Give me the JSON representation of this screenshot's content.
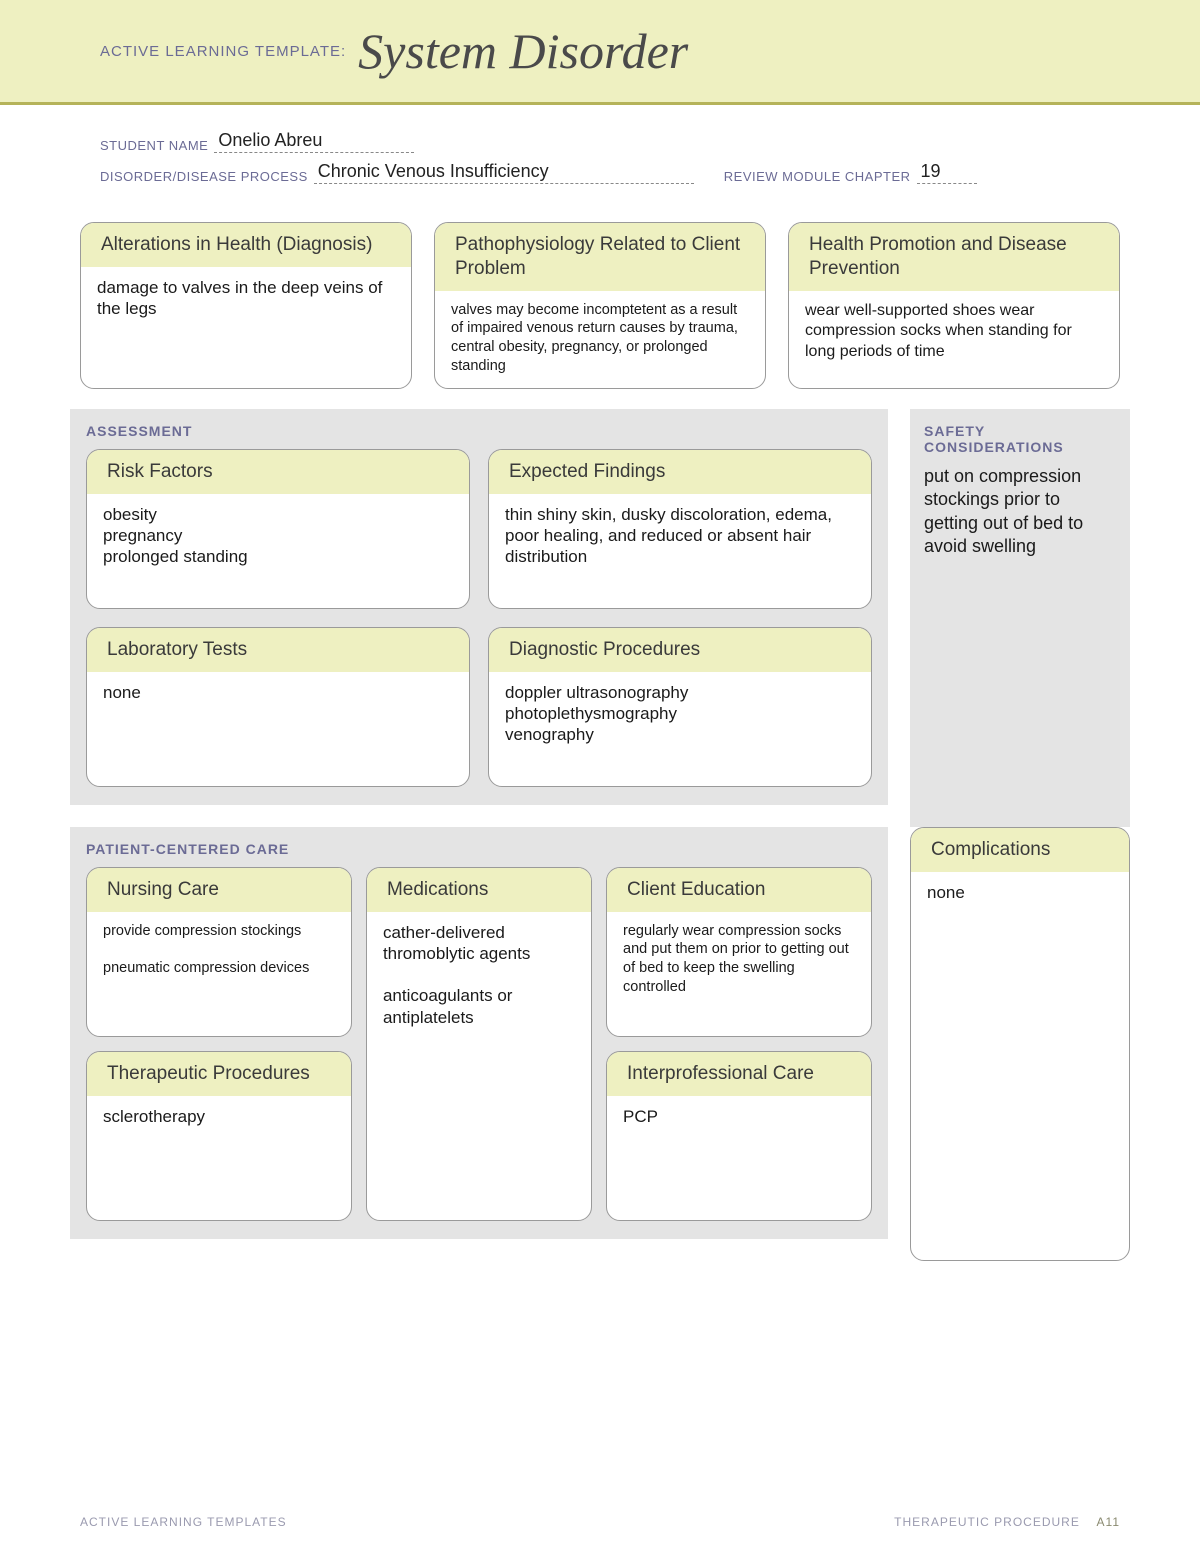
{
  "colors": {
    "banner_bg": "#eef0c1",
    "banner_border": "#b5b35a",
    "section_bg": "#e4e4e4",
    "card_header_bg": "#eef0c1",
    "card_border": "#9a9a9a",
    "label_text": "#6b6b95",
    "body_text": "#1a1a1a",
    "page_bg": "#ffffff"
  },
  "banner": {
    "label": "ACTIVE LEARNING TEMPLATE:",
    "title": "System Disorder"
  },
  "meta": {
    "student_name_label": "STUDENT NAME",
    "student_name": "Onelio Abreu",
    "disorder_label": "DISORDER/DISEASE PROCESS",
    "disorder": "Chronic Venous Insufficiency",
    "chapter_label": "REVIEW MODULE CHAPTER",
    "chapter": "19"
  },
  "top": {
    "alterations": {
      "title": "Alterations in Health (Diagnosis)",
      "body": "damage to valves in the deep veins of the legs"
    },
    "patho": {
      "title": "Pathophysiology Related to Client Problem",
      "body": "valves may become incomptetent as a result of impaired venous return causes by trauma, central obesity, pregnancy, or prolonged standing"
    },
    "promotion": {
      "title": "Health Promotion and Disease Prevention",
      "body": "wear well-supported shoes wear compression socks when standing for long periods of time"
    }
  },
  "assessment": {
    "section_label": "ASSESSMENT",
    "risk": {
      "title": "Risk Factors",
      "body": "obesity\npregnancy\nprolonged standing"
    },
    "findings": {
      "title": "Expected Findings",
      "body": "thin shiny skin, dusky discoloration, edema, poor healing, and reduced or absent hair distribution"
    },
    "labs": {
      "title": "Laboratory Tests",
      "body": "none"
    },
    "diag": {
      "title": "Diagnostic Procedures",
      "body": "doppler ultrasonography\nphotoplethysmography\nvenography"
    }
  },
  "safety": {
    "section_label": "SAFETY CONSIDERATIONS",
    "body": "put on compression stockings prior to getting out of bed to avoid swelling"
  },
  "pcc": {
    "section_label": "PATIENT-CENTERED CARE",
    "nursing": {
      "title": "Nursing Care",
      "body": "provide compression stockings\n\npneumatic compression devices"
    },
    "meds": {
      "title": "Medications",
      "body": "cather-delivered thromoblytic agents\n\nanticoagulants or antiplatelets"
    },
    "education": {
      "title": "Client Education",
      "body": "regularly wear compression socks and put them on prior to getting out of bed to keep the swelling controlled"
    },
    "therapeutic": {
      "title": "Therapeutic Procedures",
      "body": "sclerotherapy"
    },
    "interprof": {
      "title": "Interprofessional Care",
      "body": "PCP"
    }
  },
  "complications": {
    "title": "Complications",
    "body": "none"
  },
  "footer": {
    "left": "ACTIVE LEARNING TEMPLATES",
    "right_label": "THERAPEUTIC PROCEDURE",
    "right_page": "A11"
  }
}
